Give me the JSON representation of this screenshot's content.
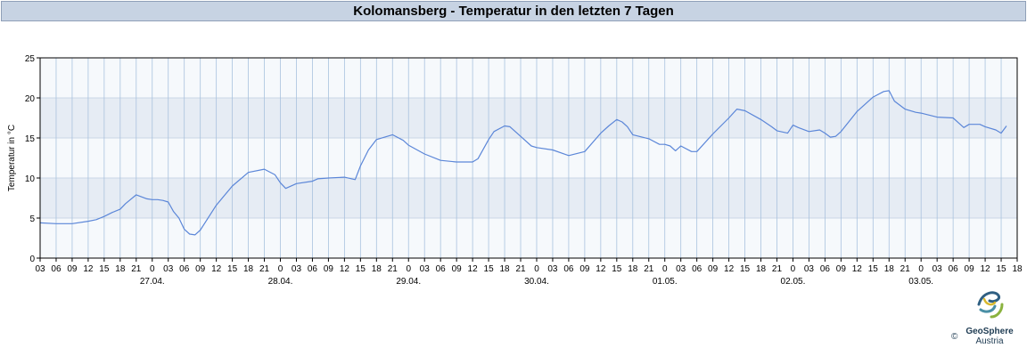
{
  "header": {
    "title": "Kolomansberg - Temperatur in den letzten 7 Tagen"
  },
  "logo": {
    "brand": "GeoSphere",
    "sub": "Austria",
    "copyright": "©"
  },
  "colors": {
    "line": "#5b86d8",
    "band": "#e6ecf4",
    "plot_bg": "#f6f9fc",
    "grid": "#a9c2de"
  },
  "chart_data": {
    "type": "line",
    "title": "Kolomansberg - Temperatur in den letzten 7 Tagen",
    "ylabel": "Temperatur in °C",
    "xlabel": "",
    "ylim": [
      0,
      25
    ],
    "yticks": [
      0,
      5,
      10,
      15,
      20,
      25
    ],
    "xlim": [
      "26.04. 03:00",
      "03.05. 18:00"
    ],
    "hour_tick_labels": [
      "03",
      "06",
      "09",
      "12",
      "15",
      "18",
      "21",
      "0",
      "03",
      "06",
      "09",
      "12",
      "15",
      "18",
      "21",
      "0",
      "03",
      "06",
      "09",
      "12",
      "15",
      "18",
      "21",
      "0",
      "03",
      "06",
      "09",
      "12",
      "15",
      "18",
      "21",
      "0",
      "03",
      "06",
      "09",
      "12",
      "15",
      "18",
      "21",
      "0",
      "03",
      "06",
      "09",
      "12",
      "15",
      "18",
      "21",
      "0",
      "03",
      "06",
      "09",
      "12",
      "15",
      "18",
      "21",
      "0",
      "03",
      "06",
      "09",
      "12",
      "15",
      "18"
    ],
    "date_labels": [
      "27.04.",
      "28.04.",
      "29.04.",
      "30.04.",
      "01.05.",
      "02.05.",
      "03.05."
    ],
    "grid": true,
    "series": [
      {
        "x": [
          "26.04. 03:00",
          "26.04. 06:00",
          "26.04. 09:00",
          "26.04. 12:00",
          "26.04. 13:30",
          "26.04. 15:00",
          "26.04. 16:30",
          "26.04. 18:00",
          "26.04. 19:00",
          "26.04. 21:00",
          "26.04. 23:00",
          "27.04. 00:00",
          "27.04. 01:00",
          "27.04. 02:00",
          "27.04. 03:00",
          "27.04. 04:00",
          "27.04. 05:00",
          "27.04. 06:00",
          "27.04. 07:00",
          "27.04. 08:00",
          "27.04. 09:00",
          "27.04. 12:00",
          "27.04. 15:00",
          "27.04. 18:00",
          "27.04. 21:00",
          "27.04. 23:00",
          "28.04. 00:00",
          "28.04. 01:00",
          "28.04. 03:00",
          "28.04. 06:00",
          "28.04. 07:00",
          "28.04. 09:00",
          "28.04. 12:00",
          "28.04. 14:00",
          "28.04. 15:00",
          "28.04. 16:30",
          "28.04. 18:00",
          "28.04. 21:00",
          "28.04. 23:00",
          "29.04. 00:00",
          "29.04. 03:00",
          "29.04. 06:00",
          "29.04. 09:00",
          "29.04. 11:00",
          "29.04. 12:00",
          "29.04. 13:00",
          "29.04. 15:00",
          "29.04. 16:00",
          "29.04. 18:00",
          "29.04. 19:00",
          "29.04. 21:00",
          "29.04. 23:00",
          "30.04. 00:00",
          "30.04. 03:00",
          "30.04. 06:00",
          "30.04. 09:00",
          "30.04. 12:00",
          "30.04. 13:30",
          "30.04. 15:00",
          "30.04. 16:00",
          "30.04. 17:00",
          "30.04. 18:00",
          "30.04. 21:00",
          "30.04. 23:00",
          "01.05. 00:00",
          "01.05. 01:00",
          "01.05. 02:00",
          "01.05. 03:00",
          "01.05. 05:00",
          "01.05. 06:00",
          "01.05. 09:00",
          "01.05. 12:00",
          "01.05. 13:30",
          "01.05. 15:00",
          "01.05. 18:00",
          "01.05. 20:00",
          "01.05. 21:00",
          "01.05. 23:00",
          "02.05. 00:00",
          "02.05. 01:00",
          "02.05. 03:00",
          "02.05. 05:00",
          "02.05. 06:00",
          "02.05. 07:00",
          "02.05. 08:00",
          "02.05. 09:00",
          "02.05. 12:00",
          "02.05. 15:00",
          "02.05. 17:00",
          "02.05. 18:00",
          "02.05. 19:00",
          "02.05. 21:00",
          "02.05. 23:00",
          "03.05. 00:00",
          "03.05. 03:00",
          "03.05. 06:00",
          "03.05. 07:00",
          "03.05. 08:00",
          "03.05. 09:00",
          "03.05. 11:00",
          "03.05. 12:00",
          "03.05. 14:00",
          "03.05. 15:00",
          "03.05. 16:00"
        ],
        "y": [
          4.4,
          4.3,
          4.3,
          4.6,
          4.8,
          5.2,
          5.7,
          6.1,
          6.8,
          7.9,
          7.4,
          7.3,
          7.3,
          7.2,
          7.0,
          5.8,
          5.0,
          3.6,
          3.0,
          2.9,
          3.5,
          6.6,
          9.0,
          10.7,
          11.1,
          10.4,
          9.4,
          8.7,
          9.3,
          9.6,
          9.9,
          10.0,
          10.1,
          9.8,
          11.5,
          13.5,
          14.8,
          15.4,
          14.7,
          14.1,
          13.0,
          12.2,
          12.0,
          12.0,
          12.0,
          12.4,
          14.8,
          15.8,
          16.5,
          16.4,
          15.2,
          14.0,
          13.8,
          13.5,
          12.8,
          13.3,
          15.6,
          16.5,
          17.3,
          17.0,
          16.4,
          15.4,
          14.9,
          14.2,
          14.2,
          14.0,
          13.4,
          14.0,
          13.3,
          13.3,
          15.5,
          17.5,
          18.6,
          18.4,
          17.3,
          16.4,
          15.9,
          15.6,
          16.6,
          16.3,
          15.8,
          16.0,
          15.6,
          15.1,
          15.2,
          15.8,
          18.3,
          20.1,
          20.8,
          20.9,
          19.6,
          18.6,
          18.2,
          18.1,
          17.6,
          17.5,
          16.9,
          16.3,
          16.7,
          16.7,
          16.4,
          16.0,
          15.6,
          16.5
        ]
      }
    ]
  }
}
